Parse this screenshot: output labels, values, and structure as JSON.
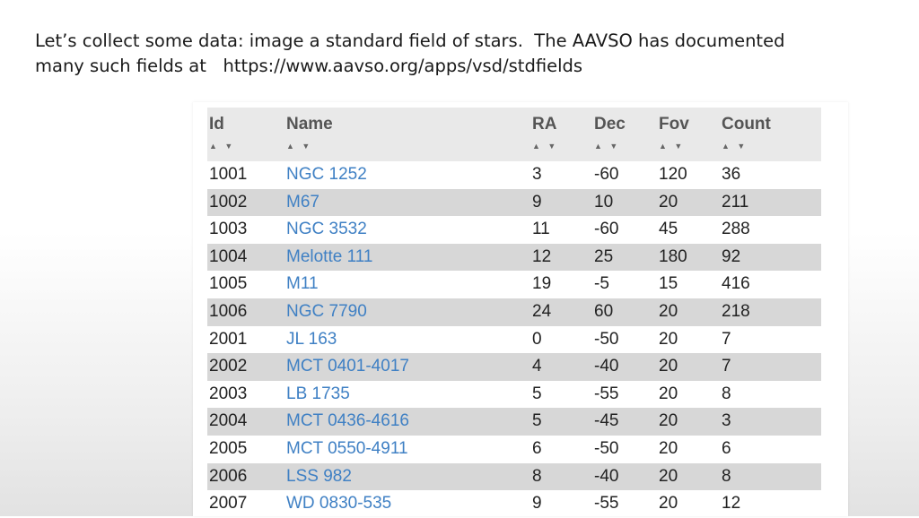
{
  "slide": {
    "line1": "Let’s collect some data: image a standard field of stars.  The AAVSO has documented",
    "line2": "many such fields at   https://www.aavso.org/apps/vsd/stdfields"
  },
  "table": {
    "headers": {
      "id": "Id",
      "name": "Name",
      "ra": "RA",
      "dec": "Dec",
      "fov": "Fov",
      "count": "Count"
    },
    "sort_glyph": "▲ ▼",
    "rows": [
      {
        "id": "1001",
        "name": "NGC 1252",
        "ra": "3",
        "dec": "-60",
        "fov": "120",
        "count": "36"
      },
      {
        "id": "1002",
        "name": "M67",
        "ra": "9",
        "dec": "10",
        "fov": "20",
        "count": "211"
      },
      {
        "id": "1003",
        "name": "NGC 3532",
        "ra": "11",
        "dec": "-60",
        "fov": "45",
        "count": "288"
      },
      {
        "id": "1004",
        "name": "Melotte 111",
        "ra": "12",
        "dec": "25",
        "fov": "180",
        "count": "92"
      },
      {
        "id": "1005",
        "name": "M11",
        "ra": "19",
        "dec": "-5",
        "fov": "15",
        "count": "416"
      },
      {
        "id": "1006",
        "name": "NGC 7790",
        "ra": "24",
        "dec": "60",
        "fov": "20",
        "count": "218"
      },
      {
        "id": "2001",
        "name": "JL 163",
        "ra": "0",
        "dec": "-50",
        "fov": "20",
        "count": "7"
      },
      {
        "id": "2002",
        "name": "MCT 0401-4017",
        "ra": "4",
        "dec": "-40",
        "fov": "20",
        "count": "7"
      },
      {
        "id": "2003",
        "name": "LB 1735",
        "ra": "5",
        "dec": "-55",
        "fov": "20",
        "count": "8"
      },
      {
        "id": "2004",
        "name": "MCT 0436-4616",
        "ra": "5",
        "dec": "-45",
        "fov": "20",
        "count": "3"
      },
      {
        "id": "2005",
        "name": "MCT 0550-4911",
        "ra": "6",
        "dec": "-50",
        "fov": "20",
        "count": "6"
      },
      {
        "id": "2006",
        "name": "LSS 982",
        "ra": "8",
        "dec": "-40",
        "fov": "20",
        "count": "8"
      },
      {
        "id": "2007",
        "name": "WD 0830-535",
        "ra": "9",
        "dec": "-55",
        "fov": "20",
        "count": "12"
      }
    ]
  }
}
